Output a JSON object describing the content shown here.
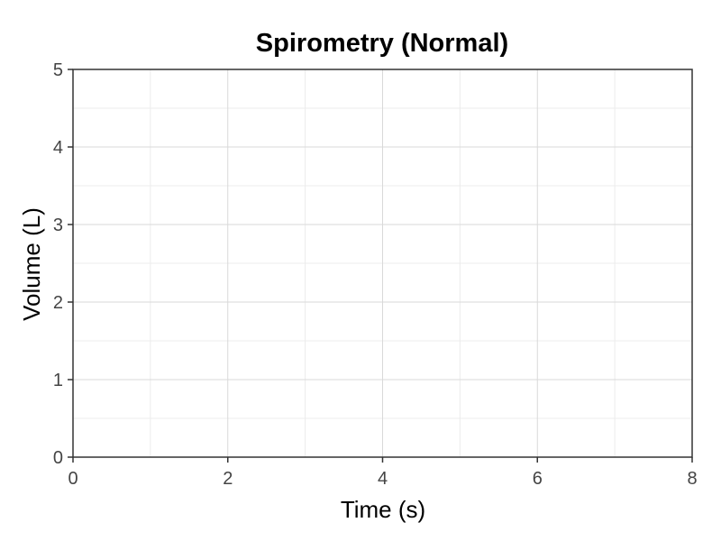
{
  "chart_data": {
    "type": "line",
    "title": "Spirometry (Normal)",
    "xlabel": "Time (s)",
    "ylabel": "Volume (L)",
    "xlim": [
      0,
      8
    ],
    "ylim": [
      0,
      5
    ],
    "x_ticks": [
      "0",
      "2",
      "4",
      "6",
      "8"
    ],
    "y_ticks": [
      "0",
      "1",
      "2",
      "3",
      "4",
      "5"
    ],
    "x_tick_values": [
      0,
      2,
      4,
      6,
      8
    ],
    "y_tick_values": [
      0,
      1,
      2,
      3,
      4,
      5
    ],
    "x_minor_values": [
      1,
      3,
      5,
      7
    ],
    "y_minor_values": [
      0.5,
      1.5,
      2.5,
      3.5,
      4.5
    ],
    "grid": true,
    "series": []
  },
  "colors": {
    "background": "#ffffff",
    "grid_major": "#d9d9d9",
    "grid_minor": "#ececec",
    "axis": "#333333"
  }
}
